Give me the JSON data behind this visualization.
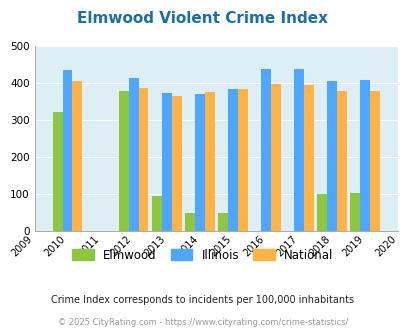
{
  "title": "Elmwood Violent Crime Index",
  "all_years": [
    2009,
    2010,
    2011,
    2012,
    2013,
    2014,
    2015,
    2016,
    2017,
    2018,
    2019,
    2020
  ],
  "bar_years": [
    2010,
    2012,
    2013,
    2014,
    2015,
    2016,
    2017,
    2018,
    2019
  ],
  "elmwood": [
    322,
    380,
    95,
    50,
    50,
    0,
    0,
    100,
    103
  ],
  "illinois": [
    435,
    413,
    373,
    370,
    383,
    438,
    438,
    405,
    408
  ],
  "national": [
    405,
    388,
    366,
    376,
    383,
    397,
    394,
    380,
    379
  ],
  "elmwood_color": "#8dc63f",
  "illinois_color": "#4da6ff",
  "national_color": "#ffb347",
  "ylim": [
    0,
    500
  ],
  "yticks": [
    0,
    100,
    200,
    300,
    400,
    500
  ],
  "background_color": "#ddeef4",
  "title_color": "#1a6fa3",
  "title_fontsize": 11,
  "subtitle": "Crime Index corresponds to incidents per 100,000 inhabitants",
  "footer": "© 2025 CityRating.com - https://www.cityrating.com/crime-statistics/",
  "legend_labels": [
    "Elmwood",
    "Illinois",
    "National"
  ],
  "bar_width": 0.3
}
